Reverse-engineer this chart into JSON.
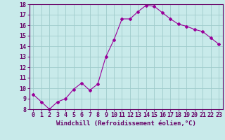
{
  "x": [
    0,
    1,
    2,
    3,
    4,
    5,
    6,
    7,
    8,
    9,
    10,
    11,
    12,
    13,
    14,
    15,
    16,
    17,
    18,
    19,
    20,
    21,
    22,
    23
  ],
  "y": [
    9.4,
    8.7,
    8.0,
    8.7,
    9.0,
    9.9,
    10.5,
    9.8,
    10.4,
    13.0,
    14.6,
    16.6,
    16.6,
    17.3,
    17.9,
    17.8,
    17.2,
    16.6,
    16.1,
    15.9,
    15.6,
    15.4,
    14.8,
    14.2
  ],
  "line_color": "#990099",
  "marker": "D",
  "marker_size": 2,
  "bg_color": "#c8eaea",
  "grid_color": "#a0cccc",
  "xlabel": "Windchill (Refroidissement éolien,°C)",
  "ylim": [
    8,
    18
  ],
  "xlim": [
    -0.5,
    23.5
  ],
  "yticks": [
    8,
    9,
    10,
    11,
    12,
    13,
    14,
    15,
    16,
    17,
    18
  ],
  "xticks": [
    0,
    1,
    2,
    3,
    4,
    5,
    6,
    7,
    8,
    9,
    10,
    11,
    12,
    13,
    14,
    15,
    16,
    17,
    18,
    19,
    20,
    21,
    22,
    23
  ],
  "axis_color": "#660066",
  "tick_color": "#660066",
  "label_fontsize": 6.5,
  "tick_fontsize": 6
}
